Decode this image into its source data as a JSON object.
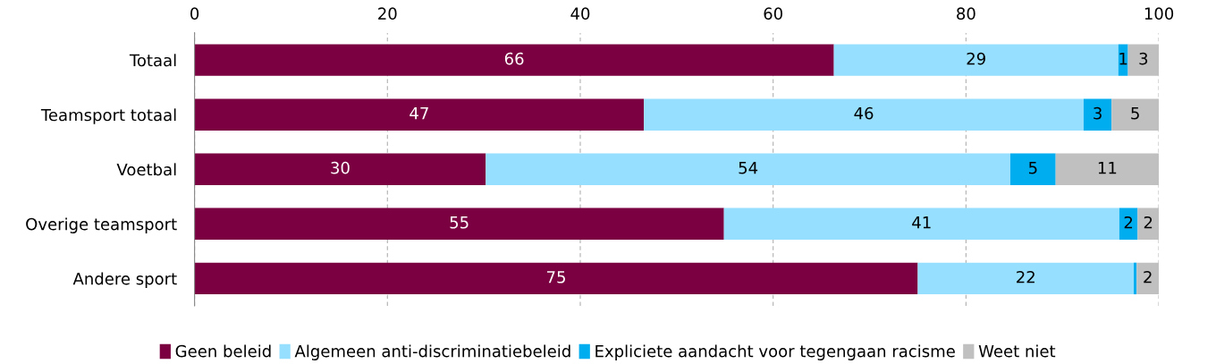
{
  "chart_data": {
    "type": "bar",
    "orientation": "horizontal",
    "stacked": true,
    "categories": [
      "Totaal",
      "Teamsport totaal",
      "Voetbal",
      "Overige teamsport",
      "Andere sport"
    ],
    "series": [
      {
        "name": "Geen beleid",
        "color": "#7b0041",
        "values": [
          66.3,
          46.6,
          30.2,
          54.9,
          75.0
        ],
        "value_labels": [
          "66",
          "47",
          "30",
          "55",
          "75"
        ]
      },
      {
        "name": "Algemeen anti-discriminatiebeleid",
        "color": "#96dfff",
        "values": [
          29.5,
          45.6,
          54.4,
          41.0,
          22.4
        ],
        "value_labels": [
          "29",
          "46",
          "54",
          "41",
          "22"
        ]
      },
      {
        "name": "Expliciete aandacht voor tegengaan racisme",
        "color": "#00aeef",
        "values": [
          1.0,
          2.9,
          4.7,
          1.9,
          0.3
        ],
        "value_labels": [
          "1",
          "3",
          "5",
          "2",
          null
        ]
      },
      {
        "name": "Weet niet",
        "color": "#c0c0c0",
        "values": [
          3.2,
          4.9,
          10.7,
          2.2,
          2.3
        ],
        "value_labels": [
          "3",
          "5",
          "11",
          "2",
          "2"
        ]
      }
    ],
    "xlim": [
      0,
      100
    ],
    "xticks": [
      0,
      20,
      40,
      60,
      80,
      100
    ],
    "grid": "x",
    "legend": "bottom"
  }
}
